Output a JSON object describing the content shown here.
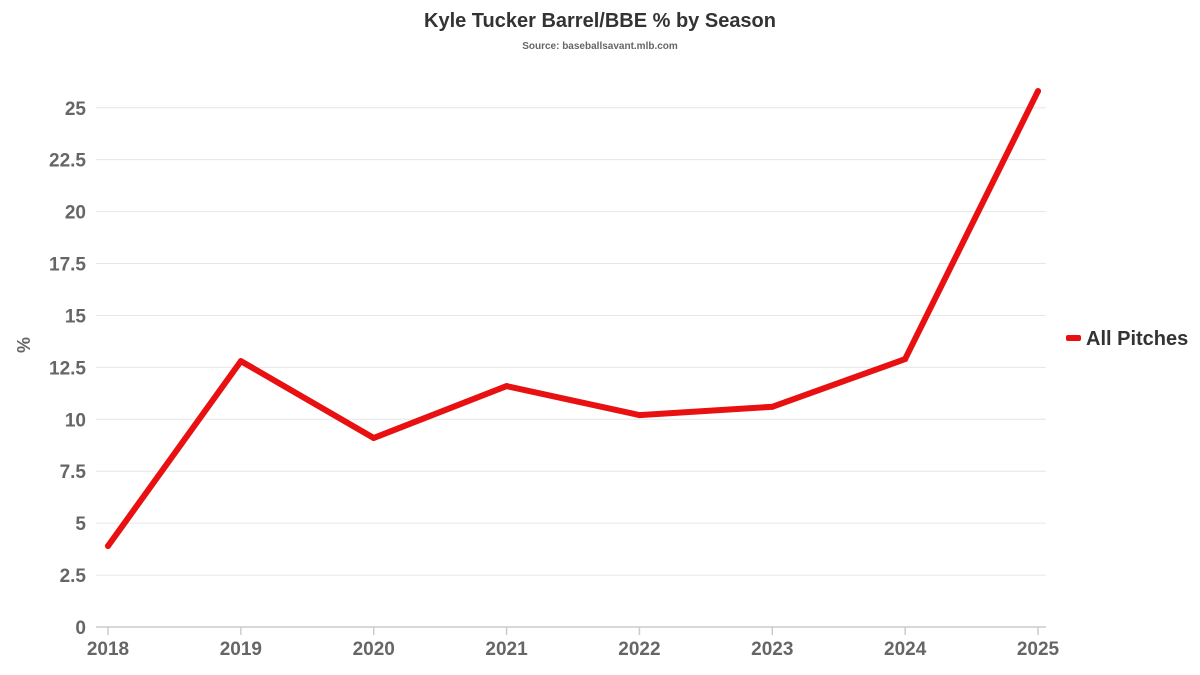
{
  "chart_data": {
    "type": "line",
    "title": "Kyle Tucker Barrel/BBE % by Season",
    "subtitle": "Source: baseballsavant.mlb.com",
    "xlabel": "",
    "ylabel": "%",
    "categories": [
      "2018",
      "2019",
      "2020",
      "2021",
      "2022",
      "2023",
      "2024",
      "2025"
    ],
    "series": [
      {
        "name": "All Pitches",
        "color": "#e81010",
        "values": [
          3.9,
          12.8,
          9.1,
          11.6,
          10.2,
          10.6,
          12.9,
          25.8
        ]
      }
    ],
    "ylim": [
      0,
      26
    ],
    "yticks": [
      "0",
      "2.5",
      "5",
      "7.5",
      "10",
      "12.5",
      "15",
      "17.5",
      "20",
      "22.5",
      "25"
    ],
    "grid": true,
    "legend_position": "right"
  }
}
